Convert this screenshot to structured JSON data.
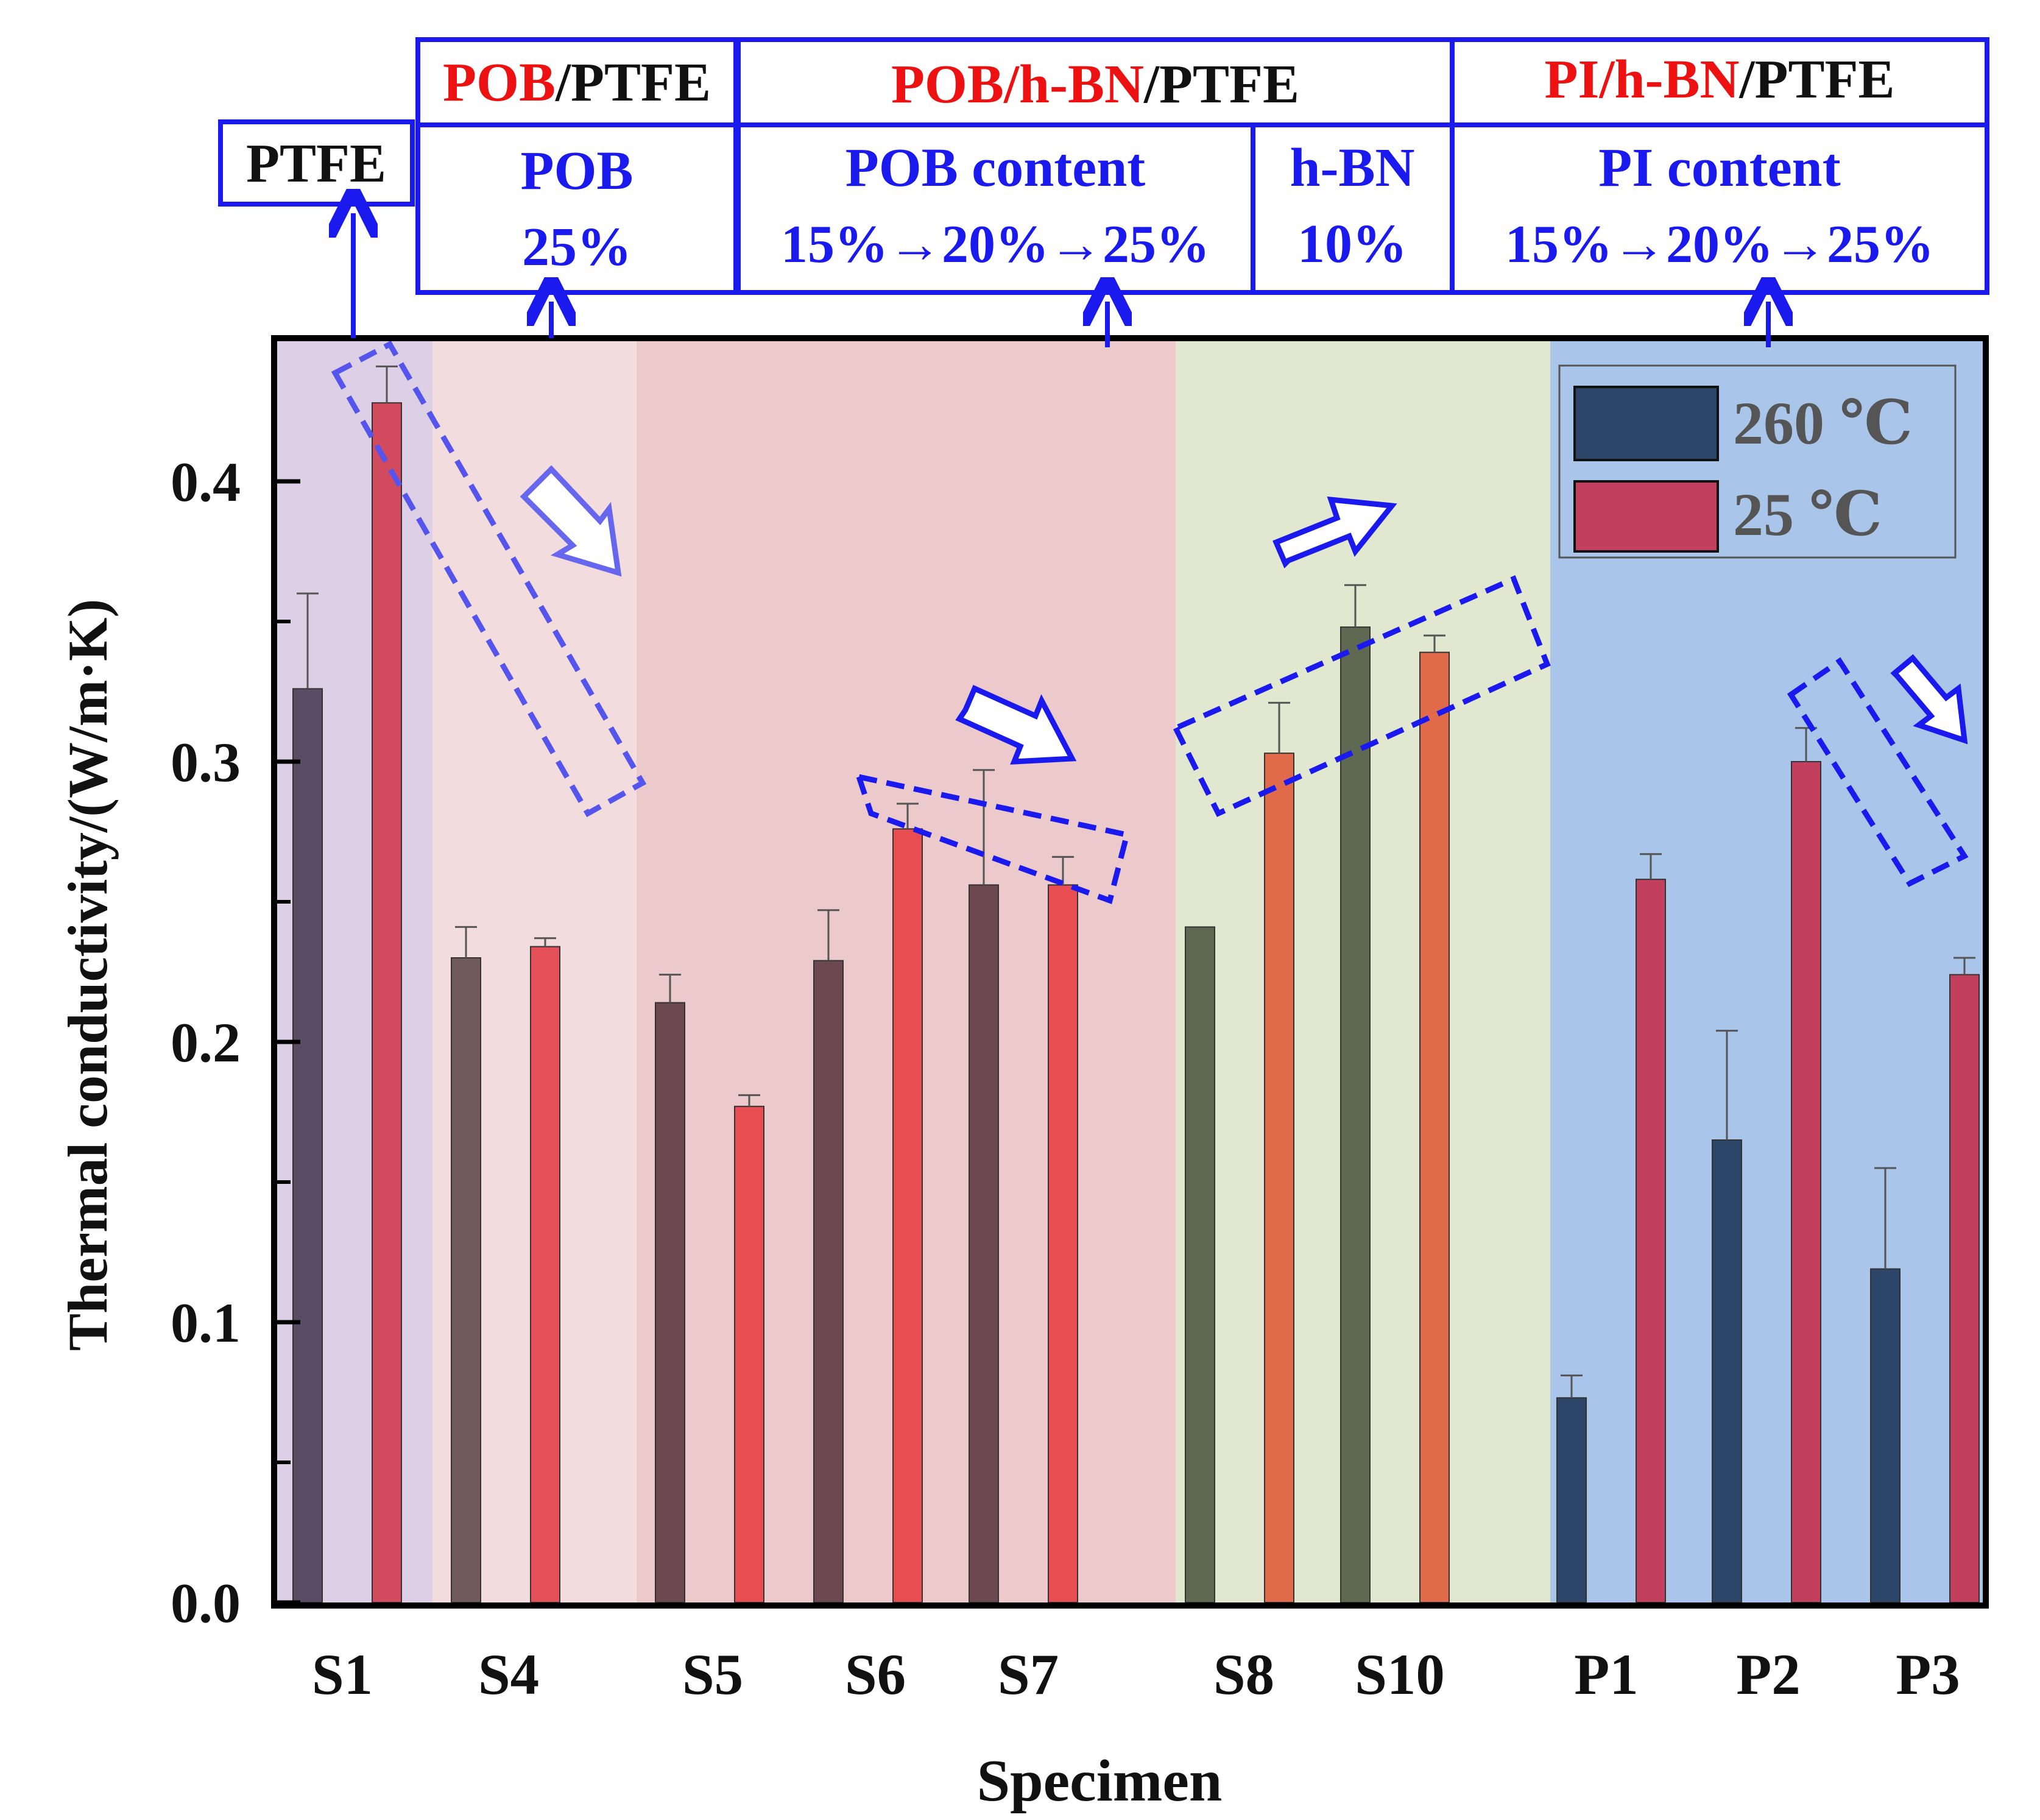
{
  "chart_data": {
    "type": "bar",
    "xlabel": "Specimen",
    "ylabel": "Thermal conductivity/(W/m·K)",
    "ylim": [
      0,
      0.45
    ],
    "yticks": [
      0.0,
      0.1,
      0.2,
      0.3,
      0.4
    ],
    "ytick_labels": [
      "0.0",
      "0.1",
      "0.2",
      "0.3",
      "0.4"
    ],
    "categories": [
      "S1",
      "S4",
      "S5",
      "S6",
      "S7",
      "S8",
      "S10",
      "P1",
      "P2",
      "P3"
    ],
    "series": [
      {
        "name": "260 ℃",
        "values": [
          0.326,
          0.23,
          0.214,
          0.229,
          0.256,
          0.241,
          0.348,
          0.073,
          0.165,
          0.119
        ],
        "errors": [
          0.034,
          0.011,
          0.01,
          0.018,
          0.041,
          0.0,
          0.015,
          0.008,
          0.039,
          0.036
        ]
      },
      {
        "name": "25 ℃",
        "values": [
          0.428,
          0.234,
          0.177,
          0.276,
          0.256,
          0.303,
          0.339,
          0.258,
          0.3,
          0.224
        ],
        "errors": [
          0.013,
          0.003,
          0.004,
          0.009,
          0.01,
          0.018,
          0.006,
          0.009,
          0.012,
          0.006
        ]
      }
    ],
    "legend": {
      "position": "top-right",
      "entries": [
        "260 ℃",
        "25 ℃"
      ]
    },
    "groups": [
      {
        "name": "PTFE",
        "members": [
          "S1"
        ]
      },
      {
        "name": "POB/PTFE",
        "members": [
          "S4"
        ]
      },
      {
        "name": "POB/h-BN/PTFE",
        "members": [
          "S5",
          "S6",
          "S7"
        ]
      },
      {
        "name": "POB/h-BN/PTFE",
        "members": [
          "S8",
          "S10"
        ]
      },
      {
        "name": "PI/h-BN/PTFE",
        "members": [
          "P1",
          "P2",
          "P3"
        ]
      }
    ]
  },
  "annotations": {
    "ptfe_label": "PTFE",
    "pob_ptfe": {
      "red": "POB",
      "black": "/PTFE"
    },
    "pob_hbn_ptfe": {
      "red": "POB/h-BN",
      "black": "/PTFE"
    },
    "pi_hbn_ptfe": {
      "red": "PI/h-BN",
      "black": "/PTFE"
    },
    "pob_line1": "POB",
    "pob_line2": "25%",
    "pob_content_line1": "POB content",
    "pob_content_line2": "15%→20%→25%",
    "hbn_line1": "h-BN",
    "hbn_line2": "10%",
    "pi_content_line1": "PI content",
    "pi_content_line2": "15%→20%→25%"
  },
  "colors": {
    "region_bg": [
      "#ddd0e6",
      "#f3dcdd",
      "#ecc9cb",
      "#e1e8cf",
      "#a9c5ea"
    ],
    "bar_260": [
      "#5b4c66",
      "#705a5c",
      "#6c4950",
      "#6c4950",
      "#6c4950",
      "#5f6850",
      "#5f6850",
      "#2c4568",
      "#2c4568",
      "#2c4568"
    ],
    "bar_25": [
      "#d14a5d",
      "#e65058",
      "#e84d52",
      "#e84d52",
      "#e84d52",
      "#e06a4a",
      "#e06a4a",
      "#c2405e",
      "#c2405e",
      "#c2405e"
    ],
    "legend_260": "#2c4568",
    "legend_25": "#c2405e",
    "annotation_blue": "#1a1aee",
    "annotation_red": "#ee1111"
  }
}
